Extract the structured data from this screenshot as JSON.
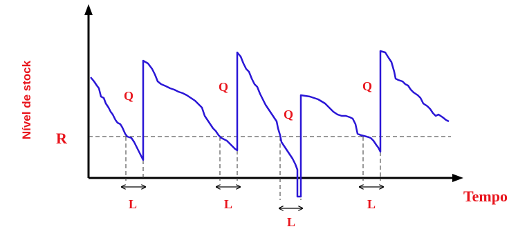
{
  "diagram": {
    "y_axis_label": "Nível de stock",
    "x_axis_label": "Tempo",
    "reorder_level_label": "R",
    "order_quantity_label": "Q",
    "lead_time_label": "L"
  },
  "colors": {
    "label_red": "#e8141c",
    "stock_curve": "#2a16d6",
    "axes": "#000000",
    "dashed_lines": "#333333"
  }
}
